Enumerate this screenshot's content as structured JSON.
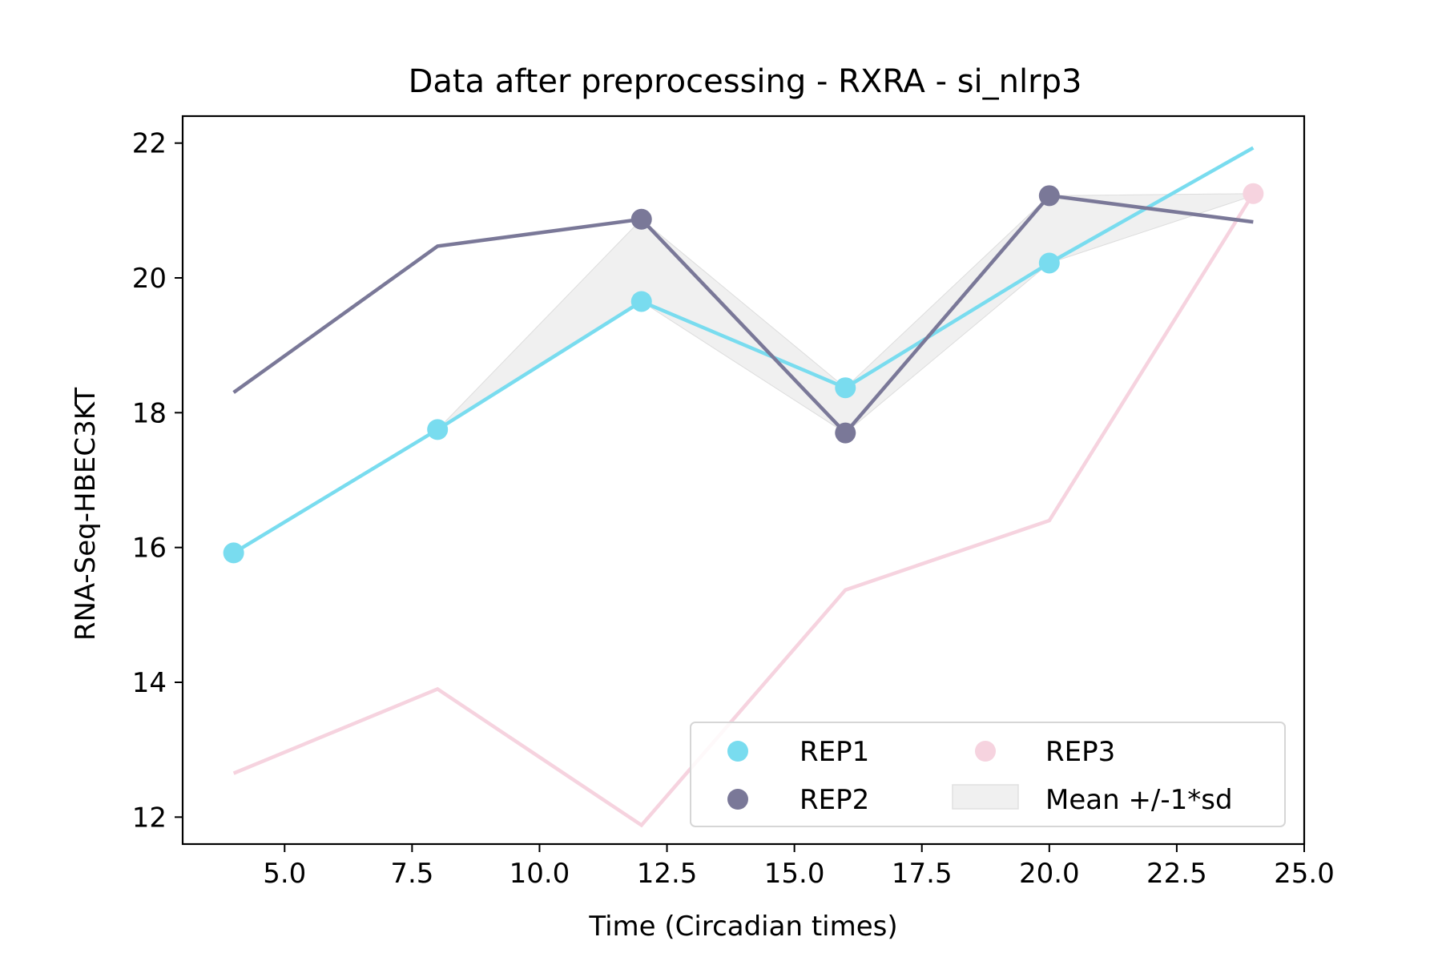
{
  "chart_data": {
    "type": "line",
    "title": "Data after preprocessing - RXRA - si_nlrp3",
    "xlabel": "Time (Circadian times)",
    "ylabel": "RNA-Seq-HBEC3KT",
    "xlim": [
      3.0,
      25.0
    ],
    "ylim": [
      11.6,
      22.4
    ],
    "xticks": [
      "5.0",
      "7.5",
      "10.0",
      "12.5",
      "15.0",
      "17.5",
      "20.0",
      "22.5",
      "25.0"
    ],
    "xtick_values": [
      5.0,
      7.5,
      10.0,
      12.5,
      15.0,
      17.5,
      20.0,
      22.5,
      25.0
    ],
    "yticks": [
      "12",
      "14",
      "16",
      "18",
      "20",
      "22"
    ],
    "ytick_values": [
      12,
      14,
      16,
      18,
      20,
      22
    ],
    "grid": false,
    "legend_placement": "lower-right",
    "x": [
      4,
      8,
      12,
      16,
      20,
      24
    ],
    "series": [
      {
        "name": "REP1",
        "color": "#79dcef",
        "line": [
          15.92,
          17.75,
          19.65,
          18.37,
          20.22,
          21.93
        ],
        "points_x": [
          4,
          8,
          12,
          16,
          20
        ],
        "points_y": [
          15.92,
          17.75,
          19.65,
          18.37,
          20.22
        ]
      },
      {
        "name": "REP2",
        "color": "#7a7898",
        "line": [
          18.3,
          20.47,
          20.87,
          17.7,
          21.22,
          20.83
        ],
        "points_x": [
          12,
          16,
          20
        ],
        "points_y": [
          20.87,
          17.7,
          21.22
        ]
      },
      {
        "name": "REP3",
        "color": "#f6d3df",
        "line": [
          12.65,
          13.9,
          11.88,
          15.37,
          16.4,
          21.25
        ],
        "points_x": [
          24
        ],
        "points_y": [
          21.25
        ]
      }
    ],
    "band": {
      "name": "Mean +/-1*sd",
      "color": "#f0f0f0",
      "x": [
        8,
        12,
        16,
        20,
        24
      ],
      "lower": [
        17.75,
        19.65,
        17.7,
        20.22,
        21.22
      ],
      "upper": [
        17.75,
        20.87,
        18.37,
        21.22,
        21.25
      ]
    }
  }
}
